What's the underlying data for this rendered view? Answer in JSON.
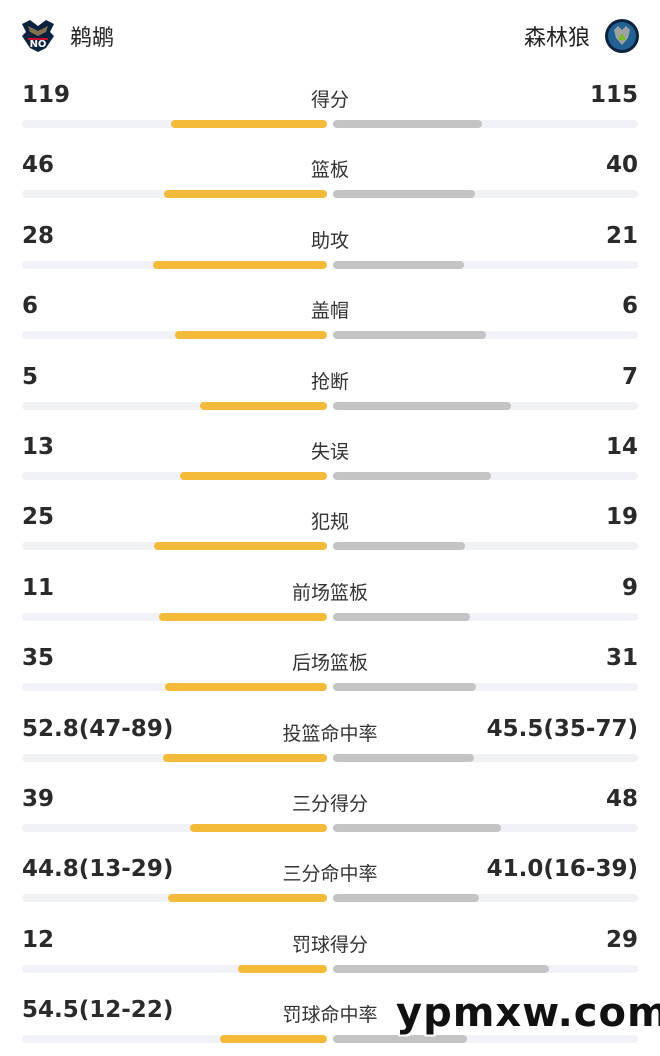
{
  "teams": {
    "home": {
      "name": "鹈鹕",
      "logo_icon": "pelicans-logo-icon"
    },
    "away": {
      "name": "森林狼",
      "logo_icon": "timberwolves-logo-icon"
    }
  },
  "colors": {
    "home_bar": "#f4bb3a",
    "away_bar": "#c4c4c4",
    "track": "#f1f2f5"
  },
  "stats": [
    {
      "label": "得分",
      "home": "119",
      "away": "115",
      "home_fill": 0.51,
      "away_fill": 0.49
    },
    {
      "label": "篮板",
      "home": "46",
      "away": "40",
      "home_fill": 0.535,
      "away_fill": 0.465
    },
    {
      "label": "助攻",
      "home": "28",
      "away": "21",
      "home_fill": 0.571,
      "away_fill": 0.429
    },
    {
      "label": "盖帽",
      "home": "6",
      "away": "6",
      "home_fill": 0.5,
      "away_fill": 0.5
    },
    {
      "label": "抢断",
      "home": "5",
      "away": "7",
      "home_fill": 0.417,
      "away_fill": 0.583
    },
    {
      "label": "失误",
      "home": "13",
      "away": "14",
      "home_fill": 0.481,
      "away_fill": 0.519
    },
    {
      "label": "犯规",
      "home": "25",
      "away": "19",
      "home_fill": 0.568,
      "away_fill": 0.432
    },
    {
      "label": "前场篮板",
      "home": "11",
      "away": "9",
      "home_fill": 0.55,
      "away_fill": 0.45
    },
    {
      "label": "后场篮板",
      "home": "35",
      "away": "31",
      "home_fill": 0.53,
      "away_fill": 0.47
    },
    {
      "label": "投篮命中率",
      "home": "52.8(47-89)",
      "away": "45.5(35-77)",
      "home_fill": 0.537,
      "away_fill": 0.463
    },
    {
      "label": "三分得分",
      "home": "39",
      "away": "48",
      "home_fill": 0.448,
      "away_fill": 0.552
    },
    {
      "label": "三分命中率",
      "home": "44.8(13-29)",
      "away": "41.0(16-39)",
      "home_fill": 0.522,
      "away_fill": 0.478
    },
    {
      "label": "罚球得分",
      "home": "12",
      "away": "29",
      "home_fill": 0.293,
      "away_fill": 0.707
    },
    {
      "label": "罚球命中率",
      "home": "54.5(12-22)",
      "away": "",
      "home_fill": 0.35,
      "away_fill": 0.44
    }
  ],
  "watermark": "ypmxw.com"
}
